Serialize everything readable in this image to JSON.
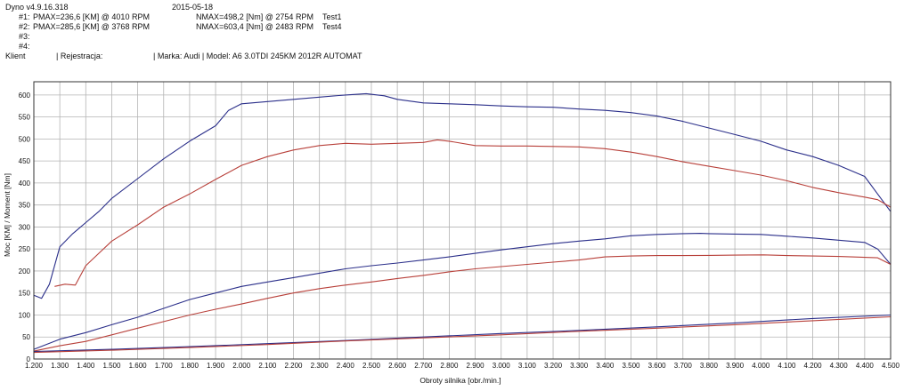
{
  "header": {
    "app_version": "Dyno v4.9.16.318",
    "date": "2015-05-18",
    "runs": [
      {
        "id": "#1:",
        "pmax": "PMAX=236,6 [KM] @ 4010 RPM",
        "nmax": "NMAX=498,2 [Nm] @ 2754 RPM",
        "name": "Test1"
      },
      {
        "id": "#2:",
        "pmax": "PMAX=285,6 [KM] @ 3768 RPM",
        "nmax": "NMAX=603,4 [Nm] @ 2483 RPM",
        "name": "Test4"
      },
      {
        "id": "#3:",
        "pmax": "",
        "nmax": "",
        "name": ""
      },
      {
        "id": "#4:",
        "pmax": "",
        "nmax": "",
        "name": ""
      }
    ],
    "client_label": "Klient",
    "registration_label": "| Rejestracja:",
    "vehicle_label": "| Marka: Audi | Model: A6 3.0TDI 245KM 2012R AUTOMAT"
  },
  "chart_data": {
    "type": "line",
    "xlabel": "Obroty silnika [obr./min.]",
    "ylabel": "Moc [KM] / Moment [Nm]",
    "xlim": [
      1200,
      4500
    ],
    "ylim": [
      0,
      630
    ],
    "x_ticks": [
      1200,
      1300,
      1400,
      1500,
      1600,
      1700,
      1800,
      1900,
      2000,
      2100,
      2200,
      2300,
      2400,
      2500,
      2600,
      2700,
      2800,
      2900,
      3000,
      3100,
      3200,
      3300,
      3400,
      3500,
      3600,
      3700,
      3800,
      3900,
      4000,
      4100,
      4200,
      4300,
      4400,
      4500
    ],
    "x_tick_labels": [
      "1.200",
      "1.300",
      "1.400",
      "1.500",
      "1.600",
      "1.700",
      "1.800",
      "1.900",
      "2.000",
      "2.100",
      "2.200",
      "2.300",
      "2.400",
      "2.500",
      "2.600",
      "2.700",
      "2.800",
      "2.900",
      "3.000",
      "3.100",
      "3.200",
      "3.300",
      "3.400",
      "3.500",
      "3.600",
      "3.700",
      "3.800",
      "3.900",
      "4.000",
      "4.100",
      "4.200",
      "4.300",
      "4.400",
      "4.500"
    ],
    "y_ticks": [
      0,
      50,
      100,
      150,
      200,
      250,
      300,
      350,
      400,
      450,
      500,
      550,
      600
    ],
    "grid": true,
    "series": [
      {
        "color": "#2b2f8a",
        "x": [
          1200,
          1230,
          1260,
          1300,
          1350,
          1400,
          1450,
          1500,
          1600,
          1700,
          1800,
          1900,
          1950,
          2000,
          2100,
          2200,
          2300,
          2400,
          2480,
          2550,
          2600,
          2700,
          2800,
          2900,
          3000,
          3100,
          3200,
          3300,
          3400,
          3500,
          3600,
          3700,
          3800,
          3900,
          4000,
          4100,
          4200,
          4300,
          4400,
          4450,
          4500
        ],
        "y": [
          145,
          138,
          170,
          255,
          285,
          310,
          335,
          365,
          410,
          455,
          495,
          530,
          565,
          580,
          585,
          590,
          595,
          600,
          603,
          598,
          590,
          582,
          580,
          578,
          575,
          573,
          572,
          568,
          565,
          560,
          552,
          540,
          525,
          510,
          495,
          475,
          460,
          440,
          415,
          375,
          335
        ]
      },
      {
        "color": "#b8403a",
        "x": [
          1280,
          1320,
          1360,
          1400,
          1450,
          1500,
          1600,
          1700,
          1800,
          1900,
          2000,
          2100,
          2200,
          2300,
          2400,
          2500,
          2600,
          2700,
          2754,
          2800,
          2900,
          3000,
          3100,
          3200,
          3300,
          3400,
          3500,
          3600,
          3700,
          3800,
          3900,
          4000,
          4100,
          4200,
          4300,
          4400,
          4450,
          4500
        ],
        "y": [
          165,
          170,
          168,
          212,
          240,
          268,
          305,
          345,
          375,
          408,
          440,
          460,
          475,
          485,
          490,
          488,
          490,
          492,
          498,
          495,
          485,
          484,
          484,
          483,
          482,
          478,
          470,
          460,
          448,
          438,
          428,
          418,
          405,
          390,
          378,
          368,
          362,
          345
        ]
      },
      {
        "color": "#2b2f8a",
        "x": [
          1200,
          1300,
          1400,
          1500,
          1600,
          1700,
          1800,
          1900,
          2000,
          2100,
          2200,
          2300,
          2400,
          2500,
          2600,
          2700,
          2800,
          2900,
          3000,
          3100,
          3200,
          3300,
          3400,
          3500,
          3600,
          3700,
          3768,
          3800,
          3900,
          4000,
          4100,
          4200,
          4300,
          4400,
          4450,
          4500
        ],
        "y": [
          22,
          45,
          60,
          78,
          95,
          115,
          135,
          150,
          165,
          175,
          185,
          195,
          205,
          212,
          218,
          225,
          232,
          240,
          248,
          255,
          262,
          268,
          273,
          280,
          283,
          285,
          285.6,
          285,
          284,
          283,
          279,
          275,
          270,
          265,
          250,
          215
        ]
      },
      {
        "color": "#b8403a",
        "x": [
          1200,
          1300,
          1400,
          1500,
          1600,
          1700,
          1800,
          1900,
          2000,
          2100,
          2200,
          2300,
          2400,
          2500,
          2600,
          2700,
          2800,
          2900,
          3000,
          3100,
          3200,
          3300,
          3400,
          3500,
          3600,
          3700,
          3800,
          3900,
          4010,
          4100,
          4200,
          4300,
          4400,
          4450,
          4500
        ],
        "y": [
          18,
          30,
          40,
          55,
          70,
          85,
          100,
          113,
          125,
          138,
          150,
          160,
          168,
          175,
          183,
          190,
          198,
          205,
          210,
          215,
          220,
          225,
          232,
          234,
          235,
          235,
          235.5,
          236,
          236.6,
          235,
          234,
          233,
          231,
          230,
          215
        ]
      },
      {
        "color": "#2b2f8a",
        "x": [
          1200,
          1500,
          1800,
          2100,
          2400,
          2700,
          3000,
          3300,
          3600,
          3900,
          4200,
          4500
        ],
        "y": [
          17,
          22,
          28,
          35,
          42,
          50,
          58,
          65,
          73,
          82,
          92,
          100
        ]
      },
      {
        "color": "#b8403a",
        "x": [
          1200,
          1500,
          1800,
          2100,
          2400,
          2700,
          3000,
          3300,
          3600,
          3900,
          4200,
          4500
        ],
        "y": [
          15,
          20,
          26,
          33,
          41,
          48,
          55,
          63,
          70,
          78,
          87,
          96
        ]
      }
    ]
  }
}
